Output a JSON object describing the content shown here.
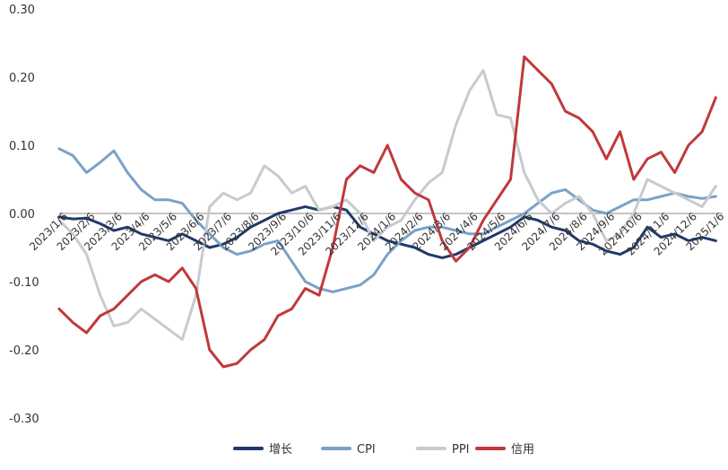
{
  "chart_data": {
    "type": "line",
    "title": "",
    "xlabel": "",
    "ylabel": "",
    "ylim": [
      -0.3,
      0.3
    ],
    "y_ticks": [
      "0.30",
      "0.20",
      "0.10",
      "0.00",
      "-0.10",
      "-0.20",
      "-0.30"
    ],
    "y_tick_values": [
      0.3,
      0.2,
      0.1,
      0.0,
      -0.1,
      -0.2,
      -0.3
    ],
    "x_ticks": [
      "2023/1/6",
      "2023/2/6",
      "2023/3/6",
      "2023/4/6",
      "2023/5/6",
      "2023/6/6",
      "2023/7/6",
      "2023/8/6",
      "2023/9/6",
      "2023/10/6",
      "2023/11/6",
      "2023/12/6",
      "2024/1/6",
      "2024/2/6",
      "2024/3/6",
      "2024/4/6",
      "2024/5/6",
      "2024/6/6",
      "2024/7/6",
      "2024/8/6",
      "2024/9/6",
      "2024/10/6",
      "2024/11/6",
      "2024/12/6",
      "2025/1/6"
    ],
    "x_tick_positions": [
      0,
      2,
      4,
      6,
      8,
      10,
      12,
      14,
      16,
      18,
      20,
      22,
      24,
      26,
      28,
      30,
      32,
      34,
      36,
      38,
      40,
      42,
      44,
      46,
      48
    ],
    "x_range": [
      0,
      48.5
    ],
    "grid": false,
    "legend_position": "bottom-center",
    "series": [
      {
        "name": "增长",
        "color": "#1f3a6b",
        "x": [
          0,
          1,
          2,
          3,
          4,
          5,
          6,
          7,
          8,
          9,
          10,
          11,
          12,
          13,
          14,
          15,
          16,
          17,
          18,
          19,
          20,
          21,
          22,
          23,
          24,
          25,
          26,
          27,
          28,
          29,
          30,
          31,
          32,
          33,
          34,
          35,
          36,
          37,
          38,
          39,
          40,
          41,
          42,
          43,
          44,
          45,
          46,
          47,
          48
        ],
        "values": [
          -0.005,
          -0.008,
          -0.007,
          -0.015,
          -0.025,
          -0.02,
          -0.03,
          -0.035,
          -0.04,
          -0.03,
          -0.04,
          -0.05,
          -0.045,
          -0.035,
          -0.02,
          -0.01,
          0.0,
          0.005,
          0.01,
          0.005,
          0.01,
          0.005,
          -0.02,
          -0.03,
          -0.04,
          -0.045,
          -0.05,
          -0.06,
          -0.065,
          -0.06,
          -0.05,
          -0.04,
          -0.03,
          -0.02,
          -0.005,
          -0.01,
          -0.02,
          -0.025,
          -0.04,
          -0.045,
          -0.055,
          -0.06,
          -0.05,
          -0.02,
          -0.035,
          -0.03,
          -0.04,
          -0.035,
          -0.04
        ]
      },
      {
        "name": "CPI",
        "color": "#7aa2c8",
        "x": [
          0,
          1,
          2,
          3,
          4,
          5,
          6,
          7,
          8,
          9,
          10,
          11,
          12,
          13,
          14,
          15,
          16,
          17,
          18,
          19,
          20,
          21,
          22,
          23,
          24,
          25,
          26,
          27,
          28,
          29,
          30,
          31,
          32,
          33,
          34,
          35,
          36,
          37,
          38,
          39,
          40,
          41,
          42,
          43,
          44,
          45,
          46,
          47,
          48
        ],
        "values": [
          0.095,
          0.085,
          0.06,
          0.075,
          0.092,
          0.06,
          0.035,
          0.02,
          0.02,
          0.015,
          -0.01,
          -0.03,
          -0.05,
          -0.06,
          -0.055,
          -0.045,
          -0.04,
          -0.07,
          -0.1,
          -0.11,
          -0.115,
          -0.11,
          -0.105,
          -0.09,
          -0.06,
          -0.04,
          -0.025,
          -0.02,
          -0.02,
          -0.025,
          -0.03,
          -0.03,
          -0.02,
          -0.01,
          0.0,
          0.015,
          0.03,
          0.035,
          0.02,
          0.005,
          0.0,
          0.01,
          0.02,
          0.02,
          0.025,
          0.03,
          0.025,
          0.022,
          0.025
        ]
      },
      {
        "name": "PPI",
        "color": "#c5cbd1",
        "x": [
          0,
          1,
          2,
          3,
          4,
          5,
          6,
          7,
          8,
          9,
          10,
          11,
          12,
          13,
          14,
          15,
          16,
          17,
          18,
          19,
          20,
          21,
          22,
          23,
          24,
          25,
          26,
          27,
          28,
          29,
          30,
          31,
          32,
          33,
          34,
          35,
          36,
          37,
          38,
          39,
          40,
          41,
          42,
          43,
          44,
          45,
          46,
          47,
          48
        ],
        "values": [
          -0.01,
          -0.03,
          -0.06,
          -0.12,
          -0.165,
          -0.16,
          -0.14,
          -0.155,
          -0.17,
          -0.185,
          -0.12,
          0.01,
          0.03,
          0.02,
          0.03,
          0.07,
          0.055,
          0.03,
          0.04,
          0.005,
          0.01,
          0.02,
          0.0,
          -0.04,
          -0.02,
          -0.01,
          0.02,
          0.045,
          0.06,
          0.13,
          0.18,
          0.21,
          0.145,
          0.14,
          0.06,
          0.02,
          0.0,
          0.015,
          0.025,
          0.0,
          -0.04,
          -0.03,
          0.0,
          0.05,
          0.04,
          0.03,
          0.02,
          0.01,
          0.04
        ]
      },
      {
        "name": "信用",
        "color": "#c0393b",
        "x": [
          0,
          1,
          2,
          3,
          4,
          5,
          6,
          7,
          8,
          9,
          10,
          11,
          12,
          13,
          14,
          15,
          16,
          17,
          18,
          19,
          20,
          21,
          22,
          23,
          24,
          25,
          26,
          27,
          28,
          29,
          30,
          31,
          32,
          33,
          34,
          35,
          36,
          37,
          38,
          39,
          40,
          41,
          42,
          43,
          44,
          45,
          46,
          47,
          48
        ],
        "values": [
          -0.14,
          -0.16,
          -0.175,
          -0.15,
          -0.14,
          -0.12,
          -0.1,
          -0.09,
          -0.1,
          -0.08,
          -0.11,
          -0.2,
          -0.225,
          -0.22,
          -0.2,
          -0.185,
          -0.15,
          -0.14,
          -0.11,
          -0.12,
          -0.05,
          0.05,
          0.07,
          0.06,
          0.1,
          0.05,
          0.03,
          0.02,
          -0.04,
          -0.07,
          -0.05,
          -0.01,
          0.02,
          0.05,
          0.23,
          0.21,
          0.19,
          0.15,
          0.14,
          0.12,
          0.08,
          0.12,
          0.05,
          0.08,
          0.09,
          0.06,
          0.1,
          0.12,
          0.17
        ]
      }
    ]
  }
}
